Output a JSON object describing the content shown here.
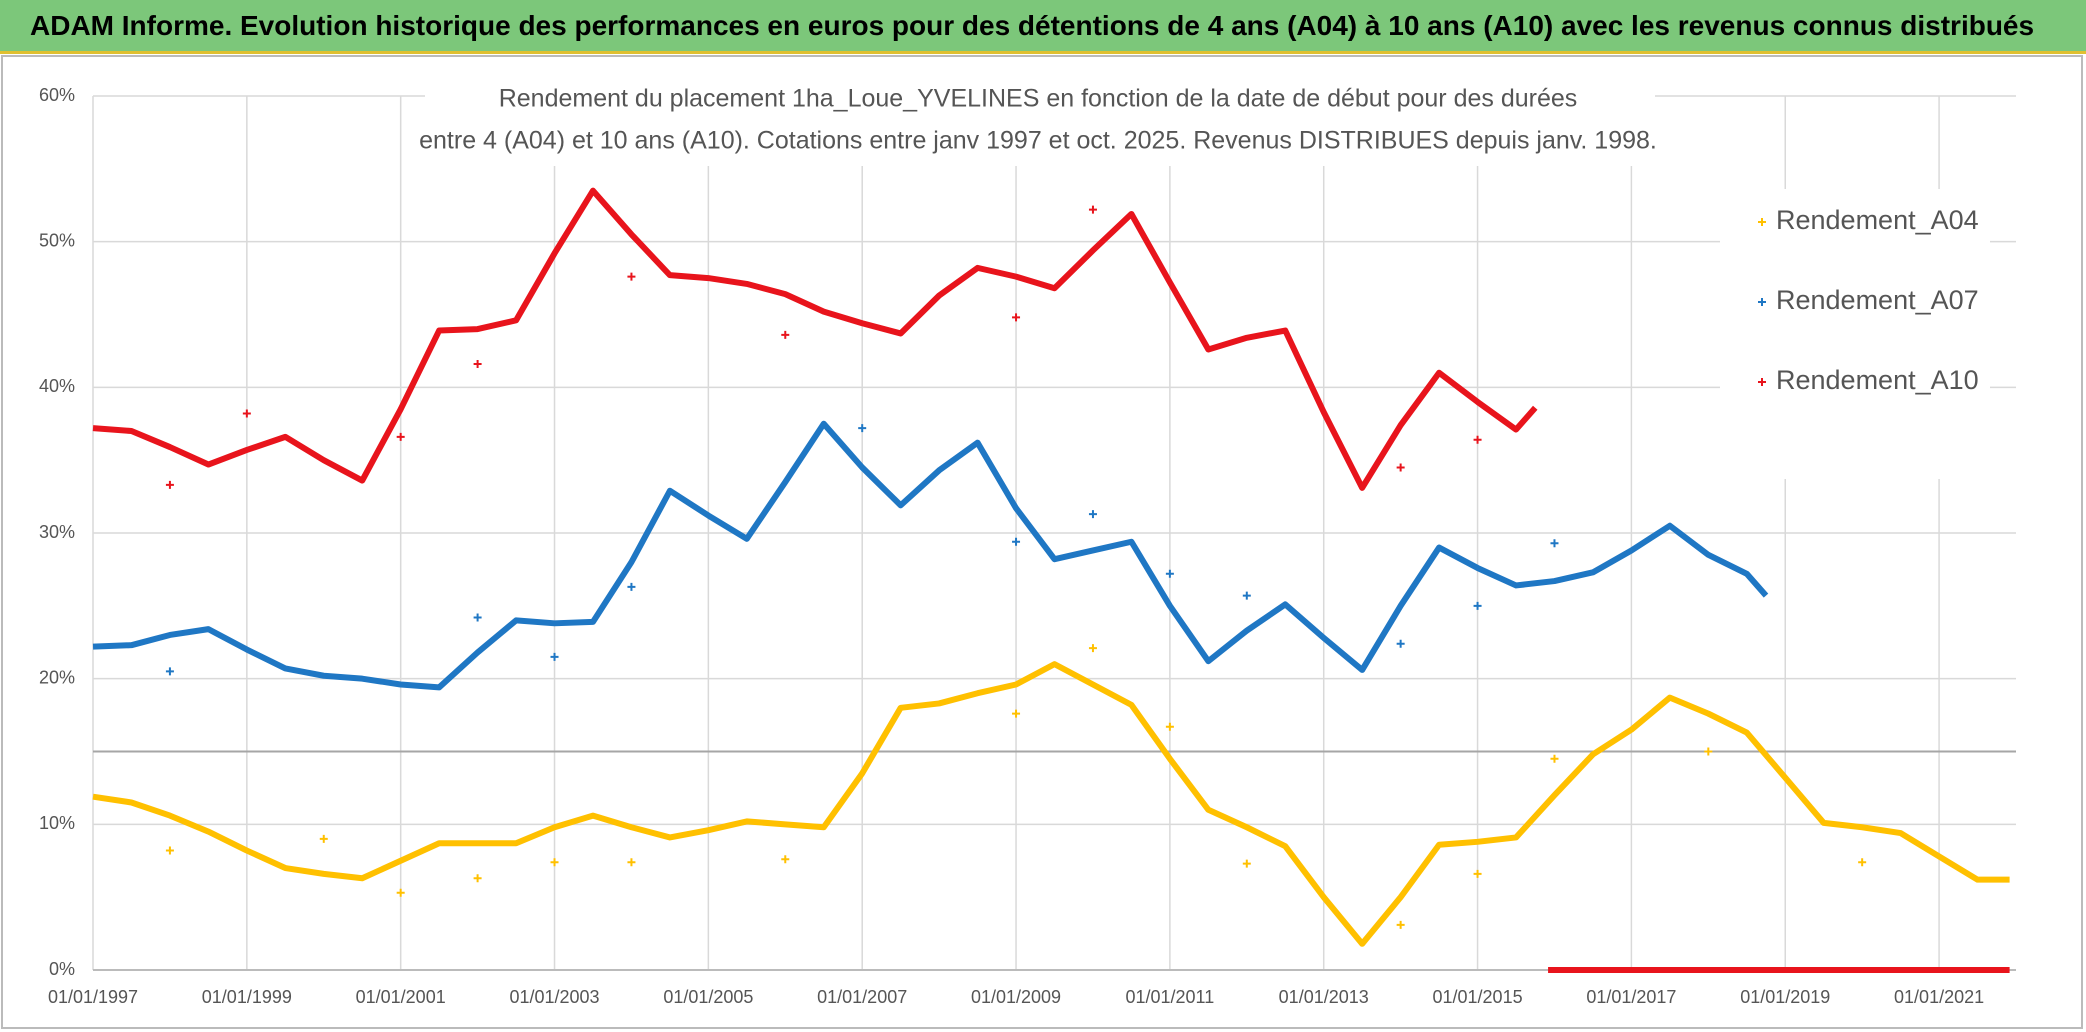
{
  "header": {
    "title": "ADAM Informe. Evolution historique des performances en euros pour des détentions de 4 ans (A04) à 10 ans (A10) avec les revenus connus distribués"
  },
  "chart_data": {
    "type": "line",
    "title_lines": [
      "Rendement du placement 1ha_Loue_YVELINES en fonction de la date de début pour des durées",
      "entre 4 (A04) et 10 ans (A10). Cotations entre janv 1997 et oct. 2025. Revenus DISTRIBUES depuis janv. 1998."
    ],
    "xlim": [
      "01/01/1997",
      "01/01/2022"
    ],
    "xticks": [
      "01/01/1997",
      "01/01/1999",
      "01/01/2001",
      "01/01/2003",
      "01/01/2005",
      "01/01/2007",
      "01/01/2009",
      "01/01/2011",
      "01/01/2013",
      "01/01/2015",
      "01/01/2017",
      "01/01/2019",
      "01/01/2021"
    ],
    "ylim": [
      0,
      60
    ],
    "yticks": [
      {
        "value": 0,
        "label": "0%"
      },
      {
        "value": 10,
        "label": "10%"
      },
      {
        "value": 20,
        "label": "20%"
      },
      {
        "value": 30,
        "label": "30%"
      },
      {
        "value": 40,
        "label": "40%"
      },
      {
        "value": 50,
        "label": "50%"
      },
      {
        "value": 60,
        "label": "60%"
      }
    ],
    "grid": true,
    "hline": 15,
    "legend": "right",
    "series": [
      {
        "name": "Rendement_A04",
        "color": "#ffc000",
        "x": [
          "01/01/1997",
          "01/07/1997",
          "01/01/1998",
          "01/07/1998",
          "01/01/1999",
          "01/07/1999",
          "01/01/2000",
          "01/07/2000",
          "01/01/2001",
          "01/07/2001",
          "01/01/2002",
          "01/07/2002",
          "01/01/2003",
          "01/07/2003",
          "01/01/2004",
          "01/07/2004",
          "01/01/2005",
          "01/07/2005",
          "01/01/2006",
          "01/07/2006",
          "01/01/2007",
          "01/07/2007",
          "01/01/2008",
          "01/07/2008",
          "01/01/2009",
          "01/07/2009",
          "01/01/2010",
          "01/07/2010",
          "01/01/2011",
          "01/07/2011",
          "01/01/2012",
          "01/07/2012",
          "01/01/2013",
          "01/07/2013",
          "01/01/2014",
          "01/07/2014",
          "01/01/2015",
          "01/07/2015",
          "01/01/2016",
          "01/07/2016",
          "01/01/2017",
          "01/07/2017",
          "01/01/2018",
          "01/07/2018",
          "01/01/2019",
          "01/07/2019",
          "01/01/2020",
          "01/07/2020",
          "01/01/2021",
          "01/07/2021",
          "01/12/2021"
        ],
        "values": [
          11.9,
          11.5,
          10.6,
          9.5,
          8.2,
          7.0,
          6.6,
          6.3,
          7.5,
          8.7,
          8.7,
          8.7,
          9.8,
          10.6,
          9.8,
          9.1,
          9.6,
          10.2,
          10.0,
          9.8,
          13.5,
          18.0,
          18.3,
          19.0,
          19.6,
          21.0,
          19.6,
          18.2,
          14.5,
          11.0,
          9.8,
          8.5,
          5.0,
          1.8,
          5.0,
          8.6,
          8.8,
          9.1,
          12.0,
          14.8,
          16.5,
          18.7,
          17.6,
          16.3,
          13.2,
          10.1,
          9.8,
          9.4,
          7.8,
          6.2,
          6.2
        ],
        "markers": {
          "x": [
            "01/01/1998",
            "01/01/2000",
            "01/01/2001",
            "01/01/2002",
            "01/01/2003",
            "01/01/2004",
            "01/01/2006",
            "01/01/2009",
            "01/01/2010",
            "01/01/2011",
            "01/01/2012",
            "01/01/2014",
            "01/01/2015",
            "01/01/2016",
            "01/01/2018",
            "01/01/2020"
          ],
          "values": [
            8.2,
            9.0,
            5.3,
            6.3,
            7.4,
            7.4,
            7.6,
            17.6,
            22.1,
            16.7,
            7.3,
            3.1,
            6.6,
            14.5,
            15.0,
            7.4
          ]
        }
      },
      {
        "name": "Rendement_A07",
        "color": "#1f77c4",
        "x": [
          "01/01/1997",
          "01/07/1997",
          "01/01/1998",
          "01/07/1998",
          "01/01/1999",
          "01/07/1999",
          "01/01/2000",
          "01/07/2000",
          "01/01/2001",
          "01/07/2001",
          "01/01/2002",
          "01/07/2002",
          "01/01/2003",
          "01/07/2003",
          "01/01/2004",
          "01/07/2004",
          "01/01/2005",
          "01/07/2005",
          "01/01/2006",
          "01/07/2006",
          "01/01/2007",
          "01/07/2007",
          "01/01/2008",
          "01/07/2008",
          "01/01/2009",
          "01/07/2009",
          "01/01/2010",
          "01/07/2010",
          "01/01/2011",
          "01/07/2011",
          "01/01/2012",
          "01/07/2012",
          "01/01/2013",
          "01/07/2013",
          "01/01/2014",
          "01/07/2014",
          "01/01/2015",
          "01/07/2015",
          "01/01/2016",
          "01/07/2016",
          "01/01/2017",
          "01/07/2017",
          "01/01/2018",
          "01/07/2018",
          "01/10/2018"
        ],
        "values": [
          22.2,
          22.3,
          23.0,
          23.4,
          22.0,
          20.7,
          20.2,
          20.0,
          19.6,
          19.4,
          21.8,
          24.0,
          23.8,
          23.9,
          28.0,
          32.9,
          31.2,
          29.6,
          33.5,
          37.5,
          34.5,
          31.9,
          34.3,
          36.2,
          31.7,
          28.2,
          28.8,
          29.4,
          25.0,
          21.2,
          23.3,
          25.1,
          22.8,
          20.6,
          25.0,
          29.0,
          27.6,
          26.4,
          26.7,
          27.3,
          28.8,
          30.5,
          28.5,
          27.2,
          25.7
        ],
        "markers": {
          "x": [
            "01/01/1998",
            "01/01/2002",
            "01/01/2003",
            "01/01/2004",
            "01/01/2007",
            "01/01/2009",
            "01/01/2010",
            "01/01/2011",
            "01/01/2012",
            "01/01/2014",
            "01/01/2015",
            "01/01/2016"
          ],
          "values": [
            20.5,
            24.2,
            21.5,
            26.3,
            37.2,
            29.4,
            31.3,
            27.2,
            25.7,
            22.4,
            25.0,
            29.3
          ]
        }
      },
      {
        "name": "Rendement_A10",
        "color": "#e8141c",
        "x": [
          "01/01/1997",
          "01/07/1997",
          "01/01/1998",
          "01/07/1998",
          "01/01/1999",
          "01/07/1999",
          "01/01/2000",
          "01/07/2000",
          "01/01/2001",
          "01/07/2001",
          "01/01/2002",
          "01/07/2002",
          "01/01/2003",
          "01/07/2003",
          "01/01/2004",
          "01/07/2004",
          "01/01/2005",
          "01/07/2005",
          "01/01/2006",
          "01/07/2006",
          "01/01/2007",
          "01/07/2007",
          "01/01/2008",
          "01/07/2008",
          "01/01/2009",
          "01/07/2009",
          "01/01/2010",
          "01/07/2010",
          "01/01/2011",
          "01/07/2011",
          "01/01/2012",
          "01/07/2012",
          "01/01/2013",
          "01/07/2013",
          "01/01/2014",
          "01/07/2014",
          "01/01/2015",
          "01/07/2015",
          "01/10/2015",
          "01/11/2015",
          "01/12/2015",
          "01/01/2017",
          "01/01/2018",
          "01/01/2019",
          "01/01/2020",
          "01/01/2021",
          "01/12/2021"
        ],
        "values": [
          37.2,
          37.0,
          35.9,
          34.7,
          35.7,
          36.6,
          35.0,
          33.6,
          38.5,
          43.9,
          44.0,
          44.6,
          49.2,
          53.5,
          50.5,
          47.7,
          47.5,
          47.1,
          46.4,
          45.2,
          44.4,
          43.7,
          46.3,
          48.2,
          47.6,
          46.8,
          49.4,
          51.9,
          47.2,
          42.6,
          43.4,
          43.9,
          38.3,
          33.1,
          37.4,
          41.0,
          39.0,
          37.1,
          38.6,
          null,
          0,
          0,
          0,
          0,
          0,
          0,
          0
        ],
        "markers": {
          "x": [
            "01/01/1998",
            "01/01/1999",
            "01/01/2001",
            "01/01/2002",
            "01/01/2004",
            "01/01/2006",
            "01/01/2009",
            "01/01/2010",
            "01/01/2014",
            "01/01/2015"
          ],
          "values": [
            33.3,
            38.2,
            36.6,
            41.6,
            47.6,
            43.6,
            44.8,
            52.2,
            34.5,
            36.4
          ]
        }
      }
    ]
  }
}
